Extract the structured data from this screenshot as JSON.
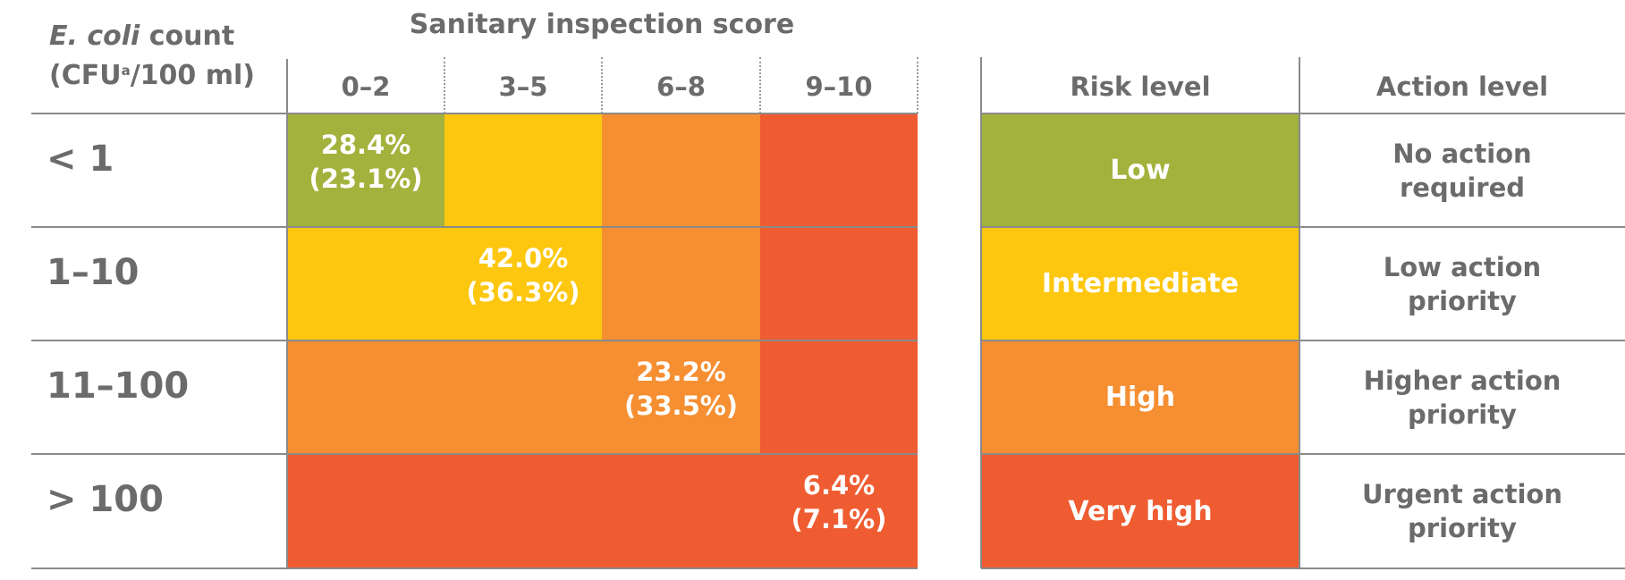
{
  "row_header": {
    "italic": "E. coli",
    "rest": " count",
    "line2_pre": "(CFU",
    "sup": "a",
    "line2_post": "/100 ml)"
  },
  "column_group_title": "Sanitary inspection score",
  "risk_header": "Risk level",
  "action_header": "Action level",
  "colors": {
    "low": "#a3b23c",
    "intermediate": "#fcc70e",
    "high": "#f58f32",
    "very_high": "#ef5c31"
  },
  "chart_data": {
    "type": "heatmap",
    "xlabel": "Sanitary inspection score",
    "ylabel": "E. coli count (CFUa/100 ml)",
    "columns": [
      "0–2",
      "3–5",
      "6–8",
      "9–10"
    ],
    "rows": [
      "< 1",
      "1–10",
      "11–100",
      "> 100"
    ],
    "risk_matrix": [
      [
        "low",
        "intermediate",
        "high",
        "very_high"
      ],
      [
        "intermediate",
        "intermediate",
        "high",
        "very_high"
      ],
      [
        "high",
        "high",
        "high",
        "very_high"
      ],
      [
        "very_high",
        "very_high",
        "very_high",
        "very_high"
      ]
    ],
    "diagonal_values": [
      {
        "row": 0,
        "col": 0,
        "value": "28.4%",
        "paren": "(23.1%)"
      },
      {
        "row": 1,
        "col": 1,
        "value": "42.0%",
        "paren": "(36.3%)"
      },
      {
        "row": 2,
        "col": 2,
        "value": "23.2%",
        "paren": "(33.5%)"
      },
      {
        "row": 3,
        "col": 3,
        "value": "6.4%",
        "paren": "(7.1%)"
      }
    ],
    "risk_levels": [
      {
        "key": "low",
        "label": "Low",
        "action": [
          "No action",
          "required"
        ]
      },
      {
        "key": "intermediate",
        "label": "Intermediate",
        "action": [
          "Low action",
          "priority"
        ]
      },
      {
        "key": "high",
        "label": "High",
        "action": [
          "Higher action",
          "priority"
        ]
      },
      {
        "key": "very_high",
        "label": "Very high",
        "action": [
          "Urgent action",
          "priority"
        ]
      }
    ]
  }
}
